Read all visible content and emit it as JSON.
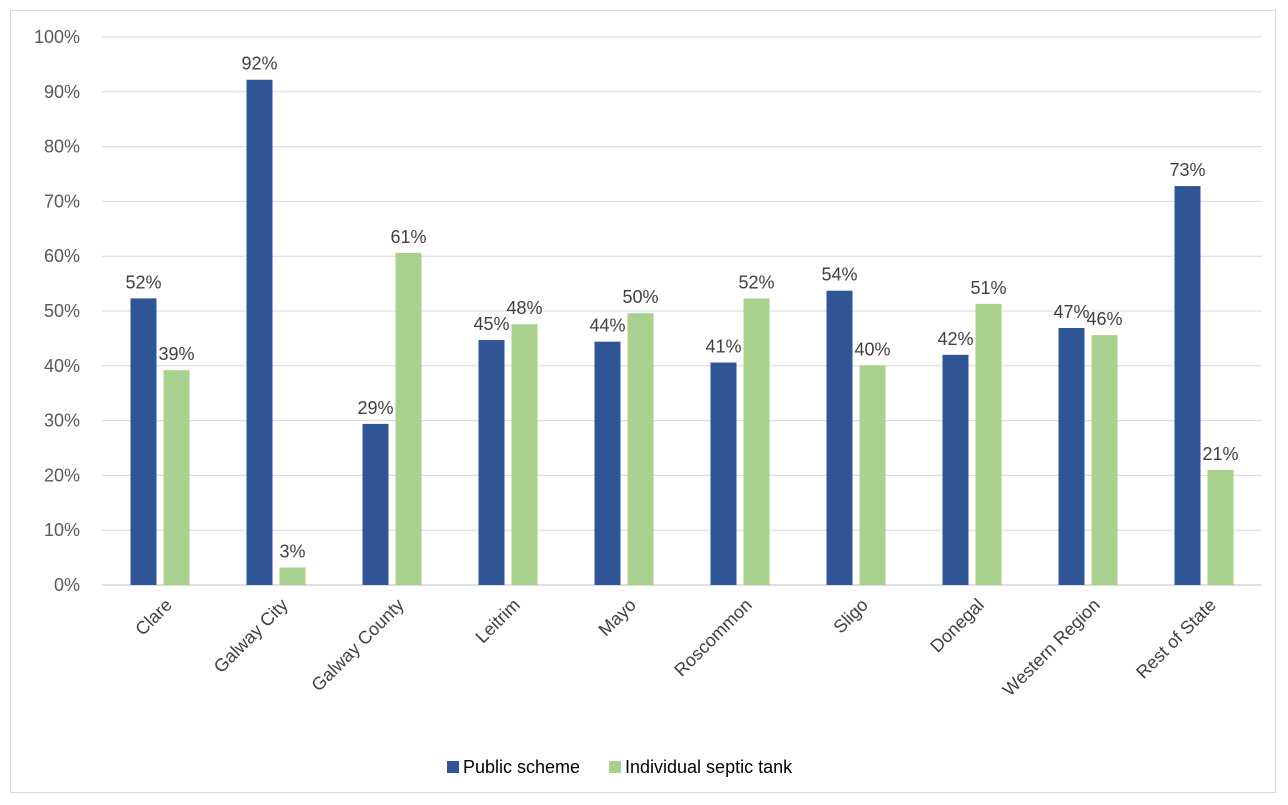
{
  "chart_data": {
    "type": "bar",
    "title": "",
    "xlabel": "",
    "ylabel": "",
    "ylim": [
      0,
      100
    ],
    "yticks": [
      "0%",
      "10%",
      "20%",
      "30%",
      "40%",
      "50%",
      "60%",
      "70%",
      "80%",
      "90%",
      "100%"
    ],
    "grid": true,
    "legend_position": "bottom",
    "categories": [
      "Clare",
      "Galway City",
      "Galway County",
      "Leitrim",
      "Mayo",
      "Roscommon",
      "Sligo",
      "Donegal",
      "Western Region",
      "Rest of State"
    ],
    "series": [
      {
        "name": "Public scheme",
        "color": "#2f5597",
        "values": [
          52.3,
          92.2,
          29.4,
          44.7,
          44.4,
          40.6,
          53.7,
          42.0,
          46.9,
          72.8
        ],
        "labels": [
          "52%",
          "92%",
          "29%",
          "45%",
          "44%",
          "41%",
          "54%",
          "42%",
          "47%",
          "73%"
        ]
      },
      {
        "name": "Individual septic tank",
        "color": "#a9d18e",
        "values": [
          39.2,
          3.2,
          60.6,
          47.6,
          49.6,
          52.3,
          40.1,
          51.3,
          45.6,
          21.0
        ],
        "labels": [
          "39%",
          "3%",
          "61%",
          "48%",
          "50%",
          "52%",
          "40%",
          "51%",
          "46%",
          "21%"
        ]
      }
    ]
  }
}
